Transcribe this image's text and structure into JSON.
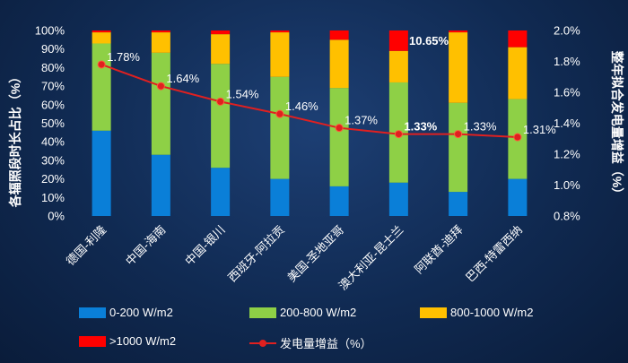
{
  "chart_data": {
    "type": "bar",
    "stacked": true,
    "categories": [
      "德国-利隆",
      "中国-海南",
      "中国-银川",
      "西班牙-阿拉贡",
      "美国-圣地亚哥",
      "澳大利亚-昆士兰",
      "阿联酋-迪拜",
      "巴西-特雷西纳"
    ],
    "series": [
      {
        "name": "0-200 W/m2",
        "color": "#0a7fd8",
        "values": [
          46,
          33,
          26,
          20,
          16,
          18,
          13,
          20
        ]
      },
      {
        "name": "200-800 W/m2",
        "color": "#8ed046",
        "values": [
          47,
          55,
          56,
          55,
          53,
          54,
          48,
          43
        ]
      },
      {
        "name": "800-1000 W/m2",
        "color": "#ffc000",
        "values": [
          6,
          11,
          16,
          24,
          26,
          17,
          38,
          28
        ]
      },
      {
        "name": ">1000 W/m2",
        "color": "#ff0000",
        "values": [
          1,
          1,
          2,
          1,
          5,
          11,
          1,
          9
        ]
      }
    ],
    "line_series": {
      "name": "发电量增益（%）",
      "color": "#e02020",
      "values": [
        1.78,
        1.64,
        1.54,
        1.46,
        1.37,
        1.33,
        1.33,
        1.31
      ],
      "labels": [
        "1.78%",
        "1.64%",
        "1.54%",
        "1.46%",
        "1.37%",
        "1.33%",
        "1.33%",
        "1.31%"
      ]
    },
    "callout_label": "10.65%",
    "ylabel_left": "各辐照段时长占比（%）",
    "ylabel_right": "整年拟合发电量增益（%）",
    "ylim_left": [
      0,
      100
    ],
    "ylim_right": [
      0.8,
      2.0
    ],
    "yticks_left": [
      "0%",
      "10%",
      "20%",
      "30%",
      "40%",
      "50%",
      "60%",
      "70%",
      "80%",
      "90%",
      "100%"
    ],
    "yticks_right": [
      "0.8%",
      "1.0%",
      "1.2%",
      "1.4%",
      "1.6%",
      "1.8%",
      "2.0%"
    ],
    "grid": false,
    "legend_position": "bottom"
  }
}
